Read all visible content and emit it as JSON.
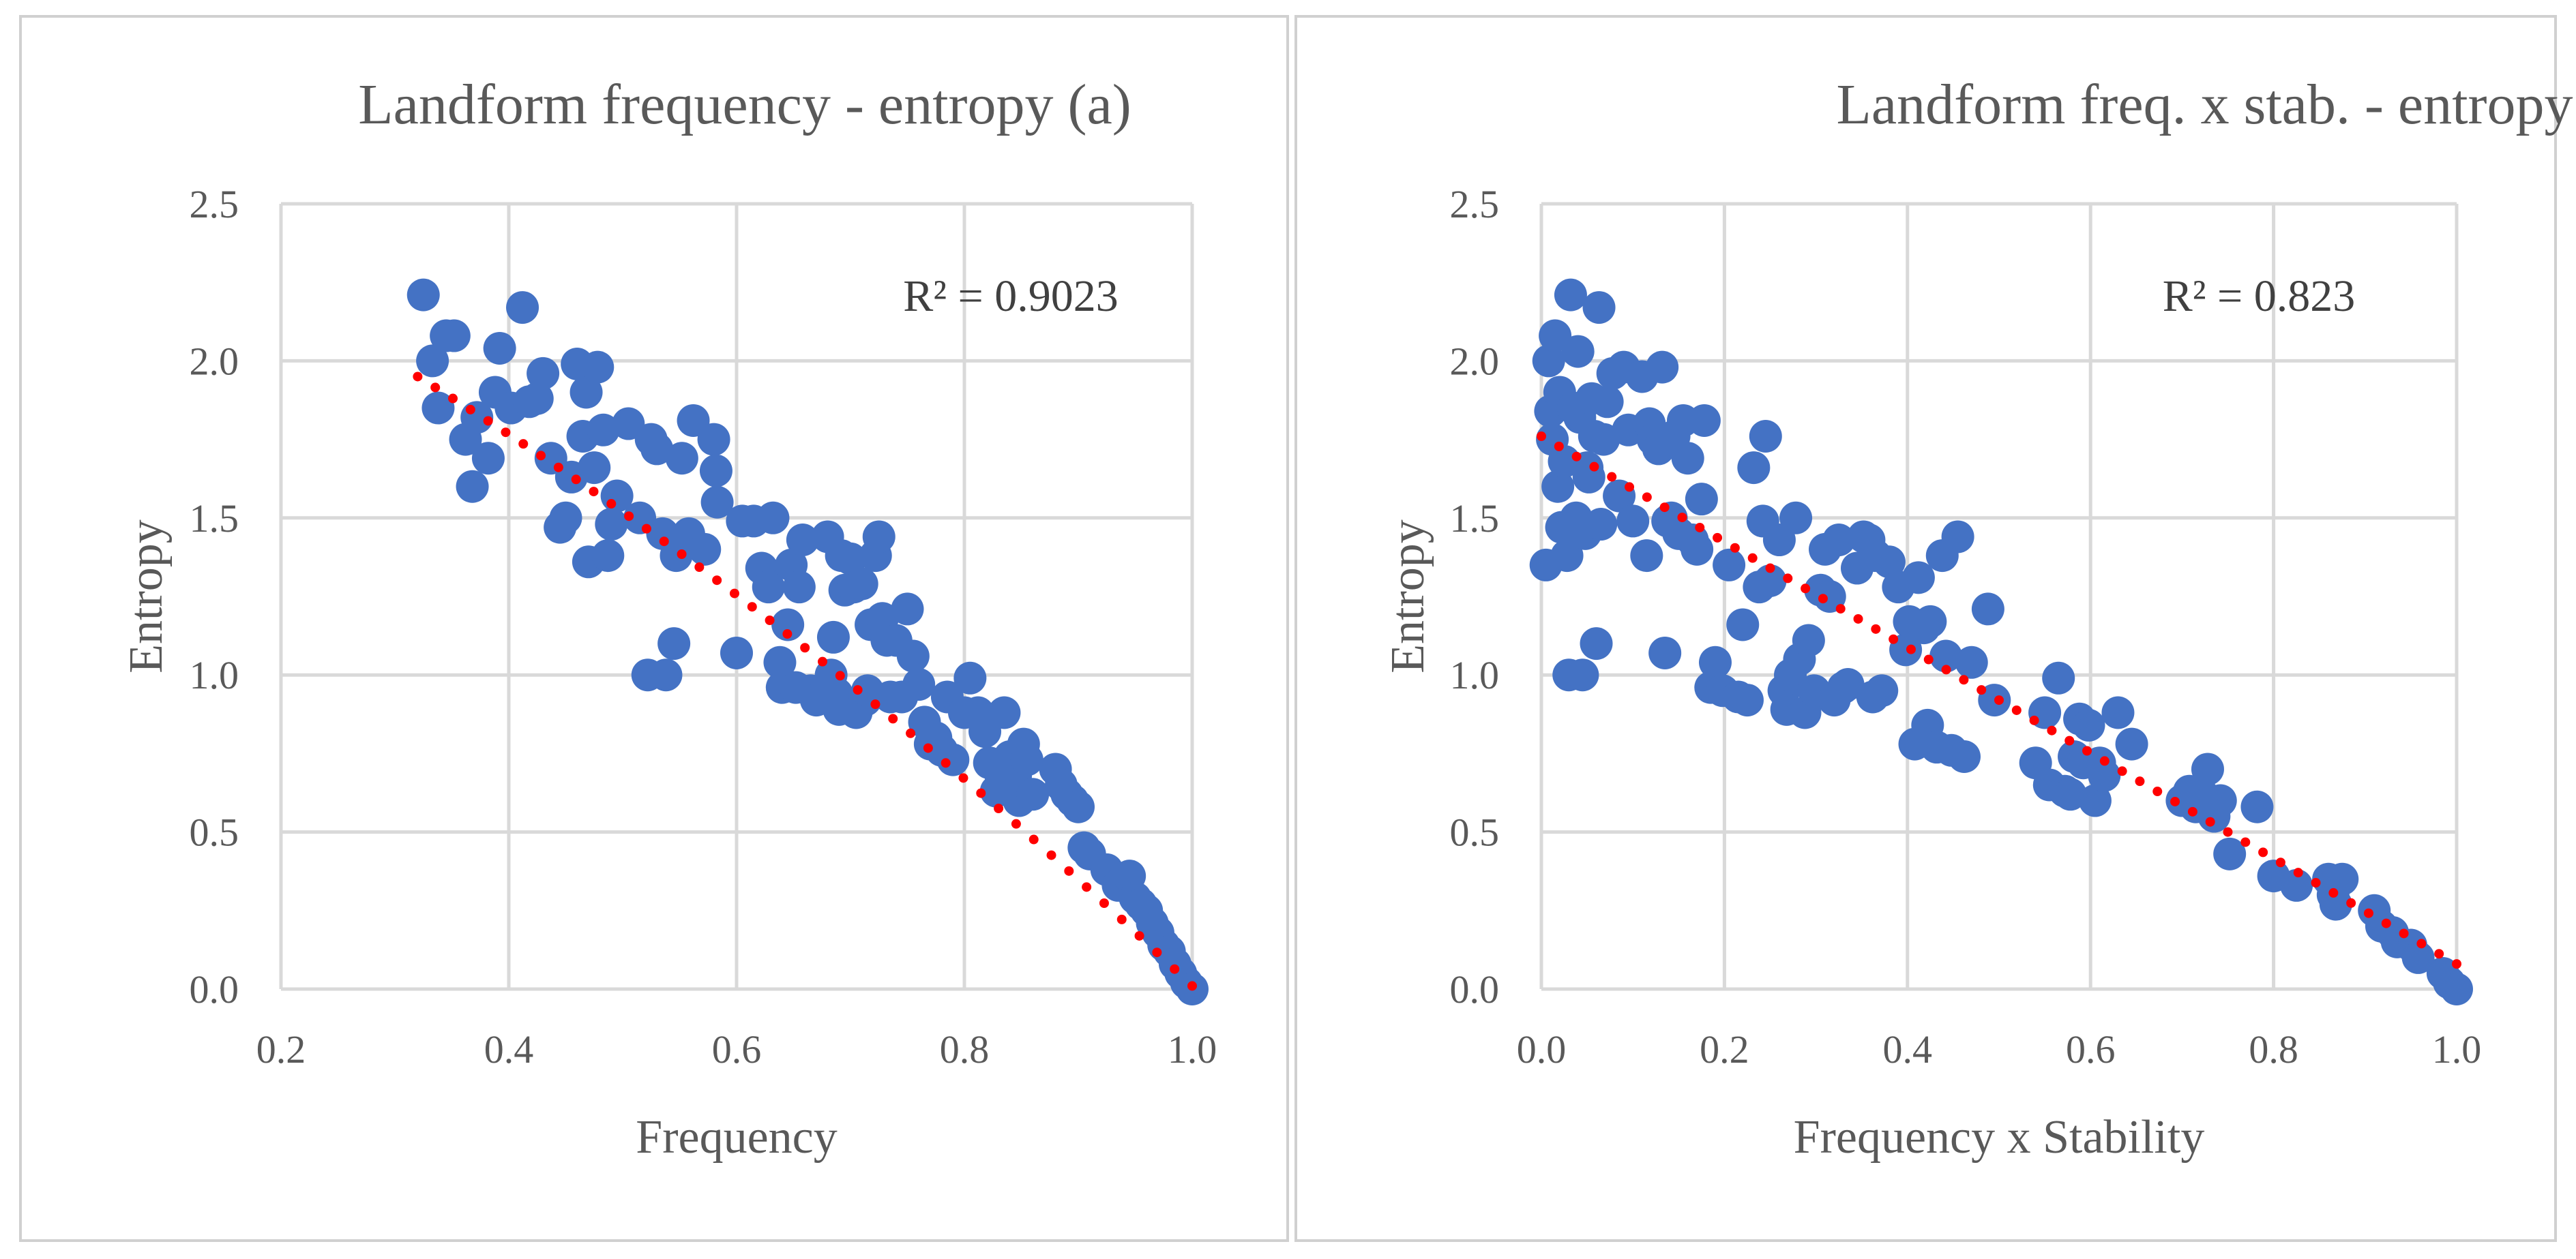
{
  "colors": {
    "points": "#4472c4",
    "trendline": "#ff0000",
    "grid": "#d9d9d9",
    "text": "#595959"
  },
  "chart_data": [
    {
      "type": "scatter",
      "title": "Landform frequency - entropy (a)",
      "xlabel": "Frequency",
      "ylabel": "Entropy",
      "xlim": [
        0.2,
        1.0
      ],
      "ylim": [
        0.0,
        2.5
      ],
      "xticks": [
        "0.2",
        "0.4",
        "0.6",
        "0.8",
        "1.0"
      ],
      "yticks": [
        "0.0",
        "0.5",
        "1.0",
        "1.5",
        "2.0",
        "2.5"
      ],
      "grid": true,
      "r2_label": "R² = 0.9023",
      "trendline": {
        "type": "polynomial",
        "x_range": [
          0.32,
          1.0
        ],
        "y_start": 1.95,
        "y_end": 0.01
      },
      "points": [
        [
          0.325,
          2.21
        ],
        [
          0.333,
          2.0
        ],
        [
          0.338,
          1.85
        ],
        [
          0.345,
          2.08
        ],
        [
          0.352,
          2.08
        ],
        [
          0.362,
          1.75
        ],
        [
          0.368,
          1.6
        ],
        [
          0.372,
          1.82
        ],
        [
          0.382,
          1.69
        ],
        [
          0.388,
          1.9
        ],
        [
          0.392,
          2.04
        ],
        [
          0.402,
          1.85
        ],
        [
          0.412,
          2.17
        ],
        [
          0.418,
          1.87
        ],
        [
          0.425,
          1.88
        ],
        [
          0.43,
          1.96
        ],
        [
          0.437,
          1.69
        ],
        [
          0.445,
          1.47
        ],
        [
          0.45,
          1.5
        ],
        [
          0.455,
          1.63
        ],
        [
          0.46,
          1.99
        ],
        [
          0.465,
          1.76
        ],
        [
          0.468,
          1.9
        ],
        [
          0.47,
          1.36
        ],
        [
          0.475,
          1.66
        ],
        [
          0.478,
          1.98
        ],
        [
          0.483,
          1.78
        ],
        [
          0.487,
          1.38
        ],
        [
          0.49,
          1.48
        ],
        [
          0.495,
          1.57
        ],
        [
          0.505,
          1.8
        ],
        [
          0.515,
          1.5
        ],
        [
          0.522,
          1.0
        ],
        [
          0.525,
          1.75
        ],
        [
          0.53,
          1.72
        ],
        [
          0.535,
          1.45
        ],
        [
          0.538,
          1.0
        ],
        [
          0.545,
          1.1
        ],
        [
          0.547,
          1.38
        ],
        [
          0.552,
          1.69
        ],
        [
          0.558,
          1.45
        ],
        [
          0.562,
          1.81
        ],
        [
          0.572,
          1.4
        ],
        [
          0.58,
          1.75
        ],
        [
          0.582,
          1.65
        ],
        [
          0.583,
          1.55
        ],
        [
          0.6,
          1.07
        ],
        [
          0.605,
          1.49
        ],
        [
          0.615,
          1.49
        ],
        [
          0.622,
          1.34
        ],
        [
          0.628,
          1.28
        ],
        [
          0.632,
          1.5
        ],
        [
          0.638,
          1.04
        ],
        [
          0.64,
          0.96
        ],
        [
          0.645,
          1.16
        ],
        [
          0.648,
          1.35
        ],
        [
          0.652,
          0.96
        ],
        [
          0.655,
          1.28
        ],
        [
          0.658,
          1.43
        ],
        [
          0.665,
          0.95
        ],
        [
          0.67,
          0.92
        ],
        [
          0.68,
          1.44
        ],
        [
          0.683,
          1.0
        ],
        [
          0.685,
          1.12
        ],
        [
          0.688,
          0.94
        ],
        [
          0.69,
          0.89
        ],
        [
          0.692,
          1.38
        ],
        [
          0.695,
          1.27
        ],
        [
          0.7,
          1.37
        ],
        [
          0.703,
          1.28
        ],
        [
          0.705,
          0.88
        ],
        [
          0.71,
          1.29
        ],
        [
          0.713,
          0.92
        ],
        [
          0.715,
          0.95
        ],
        [
          0.718,
          1.16
        ],
        [
          0.722,
          1.38
        ],
        [
          0.725,
          1.44
        ],
        [
          0.728,
          1.18
        ],
        [
          0.732,
          1.11
        ],
        [
          0.735,
          0.93
        ],
        [
          0.74,
          1.11
        ],
        [
          0.745,
          0.93
        ],
        [
          0.75,
          1.21
        ],
        [
          0.755,
          1.06
        ],
        [
          0.76,
          0.97
        ],
        [
          0.765,
          0.85
        ],
        [
          0.77,
          0.78
        ],
        [
          0.775,
          0.8
        ],
        [
          0.78,
          0.76
        ],
        [
          0.785,
          0.93
        ],
        [
          0.79,
          0.73
        ],
        [
          0.8,
          0.88
        ],
        [
          0.805,
          0.99
        ],
        [
          0.812,
          0.88
        ],
        [
          0.818,
          0.82
        ],
        [
          0.822,
          0.72
        ],
        [
          0.828,
          0.63
        ],
        [
          0.832,
          0.68
        ],
        [
          0.835,
          0.88
        ],
        [
          0.84,
          0.74
        ],
        [
          0.845,
          0.68
        ],
        [
          0.848,
          0.6
        ],
        [
          0.852,
          0.78
        ],
        [
          0.855,
          0.73
        ],
        [
          0.86,
          0.62
        ],
        [
          0.88,
          0.7
        ],
        [
          0.885,
          0.65
        ],
        [
          0.89,
          0.62
        ],
        [
          0.895,
          0.6
        ],
        [
          0.9,
          0.58
        ],
        [
          0.905,
          0.45
        ],
        [
          0.91,
          0.43
        ],
        [
          0.925,
          0.38
        ],
        [
          0.935,
          0.33
        ],
        [
          0.945,
          0.36
        ],
        [
          0.95,
          0.29
        ],
        [
          0.955,
          0.27
        ],
        [
          0.96,
          0.25
        ],
        [
          0.965,
          0.21
        ],
        [
          0.97,
          0.18
        ],
        [
          0.975,
          0.14
        ],
        [
          0.98,
          0.12
        ],
        [
          0.985,
          0.08
        ],
        [
          0.99,
          0.05
        ],
        [
          0.995,
          0.02
        ],
        [
          1.0,
          0.0
        ]
      ]
    },
    {
      "type": "scatter",
      "title": "Landform freq. x stab. - entropy (b)",
      "xlabel": "Frequency x Stability",
      "ylabel": "Entropy",
      "xlim": [
        0.0,
        1.0
      ],
      "ylim": [
        0.0,
        2.5
      ],
      "xticks": [
        "0.0",
        "0.2",
        "0.4",
        "0.6",
        "0.8",
        "1.0"
      ],
      "yticks": [
        "0.0",
        "0.5",
        "1.0",
        "1.5",
        "2.0",
        "2.5"
      ],
      "grid": true,
      "r2_label": "R² = 0.823",
      "trendline": {
        "type": "linear",
        "x_range": [
          0.0,
          1.0
        ],
        "y_start": 1.76,
        "y_end": 0.08
      },
      "points": [
        [
          0.005,
          1.35
        ],
        [
          0.008,
          2.0
        ],
        [
          0.01,
          1.84
        ],
        [
          0.012,
          1.75
        ],
        [
          0.015,
          2.08
        ],
        [
          0.018,
          1.6
        ],
        [
          0.02,
          1.9
        ],
        [
          0.022,
          1.47
        ],
        [
          0.025,
          1.68
        ],
        [
          0.028,
          1.38
        ],
        [
          0.03,
          1.0
        ],
        [
          0.032,
          2.21
        ],
        [
          0.035,
          1.85
        ],
        [
          0.038,
          1.5
        ],
        [
          0.04,
          2.03
        ],
        [
          0.042,
          1.82
        ],
        [
          0.045,
          1.0
        ],
        [
          0.048,
          1.45
        ],
        [
          0.05,
          1.66
        ],
        [
          0.052,
          1.63
        ],
        [
          0.055,
          1.88
        ],
        [
          0.058,
          1.76
        ],
        [
          0.06,
          1.1
        ],
        [
          0.063,
          2.17
        ],
        [
          0.065,
          1.48
        ],
        [
          0.068,
          1.75
        ],
        [
          0.072,
          1.87
        ],
        [
          0.078,
          1.96
        ],
        [
          0.085,
          1.57
        ],
        [
          0.09,
          1.98
        ],
        [
          0.095,
          1.78
        ],
        [
          0.1,
          1.49
        ],
        [
          0.11,
          1.95
        ],
        [
          0.115,
          1.38
        ],
        [
          0.118,
          1.8
        ],
        [
          0.122,
          1.75
        ],
        [
          0.128,
          1.72
        ],
        [
          0.132,
          1.98
        ],
        [
          0.135,
          1.07
        ],
        [
          0.138,
          1.49
        ],
        [
          0.142,
          1.5
        ],
        [
          0.145,
          1.76
        ],
        [
          0.15,
          1.45
        ],
        [
          0.155,
          1.81
        ],
        [
          0.16,
          1.69
        ],
        [
          0.165,
          1.43
        ],
        [
          0.17,
          1.4
        ],
        [
          0.175,
          1.56
        ],
        [
          0.178,
          1.81
        ],
        [
          0.185,
          0.96
        ],
        [
          0.19,
          1.04
        ],
        [
          0.198,
          0.95
        ],
        [
          0.205,
          1.35
        ],
        [
          0.215,
          0.93
        ],
        [
          0.22,
          1.16
        ],
        [
          0.225,
          0.92
        ],
        [
          0.232,
          1.66
        ],
        [
          0.238,
          1.28
        ],
        [
          0.242,
          1.49
        ],
        [
          0.245,
          1.76
        ],
        [
          0.25,
          1.3
        ],
        [
          0.26,
          1.43
        ],
        [
          0.265,
          0.95
        ],
        [
          0.268,
          0.89
        ],
        [
          0.272,
          1.0
        ],
        [
          0.278,
          1.5
        ],
        [
          0.282,
          1.05
        ],
        [
          0.288,
          0.88
        ],
        [
          0.292,
          1.11
        ],
        [
          0.298,
          0.95
        ],
        [
          0.305,
          1.27
        ],
        [
          0.31,
          1.4
        ],
        [
          0.315,
          1.25
        ],
        [
          0.32,
          0.92
        ],
        [
          0.325,
          1.43
        ],
        [
          0.33,
          0.96
        ],
        [
          0.335,
          0.97
        ],
        [
          0.345,
          1.34
        ],
        [
          0.352,
          1.44
        ],
        [
          0.358,
          1.43
        ],
        [
          0.362,
          0.93
        ],
        [
          0.365,
          1.38
        ],
        [
          0.372,
          0.95
        ],
        [
          0.38,
          1.36
        ],
        [
          0.39,
          1.28
        ],
        [
          0.398,
          1.08
        ],
        [
          0.402,
          1.17
        ],
        [
          0.408,
          0.78
        ],
        [
          0.412,
          1.31
        ],
        [
          0.418,
          1.15
        ],
        [
          0.422,
          0.84
        ],
        [
          0.425,
          1.17
        ],
        [
          0.432,
          0.77
        ],
        [
          0.438,
          1.38
        ],
        [
          0.442,
          1.06
        ],
        [
          0.448,
          0.76
        ],
        [
          0.455,
          1.44
        ],
        [
          0.462,
          0.74
        ],
        [
          0.47,
          1.04
        ],
        [
          0.488,
          1.21
        ],
        [
          0.495,
          0.92
        ],
        [
          0.54,
          0.72
        ],
        [
          0.55,
          0.88
        ],
        [
          0.555,
          0.65
        ],
        [
          0.565,
          0.99
        ],
        [
          0.572,
          0.63
        ],
        [
          0.578,
          0.62
        ],
        [
          0.582,
          0.74
        ],
        [
          0.588,
          0.86
        ],
        [
          0.592,
          0.72
        ],
        [
          0.598,
          0.84
        ],
        [
          0.605,
          0.6
        ],
        [
          0.61,
          0.72
        ],
        [
          0.615,
          0.68
        ],
        [
          0.63,
          0.88
        ],
        [
          0.645,
          0.78
        ],
        [
          0.7,
          0.6
        ],
        [
          0.708,
          0.63
        ],
        [
          0.715,
          0.58
        ],
        [
          0.722,
          0.62
        ],
        [
          0.728,
          0.7
        ],
        [
          0.735,
          0.55
        ],
        [
          0.742,
          0.6
        ],
        [
          0.752,
          0.43
        ],
        [
          0.782,
          0.58
        ],
        [
          0.8,
          0.36
        ],
        [
          0.825,
          0.33
        ],
        [
          0.86,
          0.35
        ],
        [
          0.865,
          0.3
        ],
        [
          0.868,
          0.27
        ],
        [
          0.875,
          0.35
        ],
        [
          0.91,
          0.25
        ],
        [
          0.918,
          0.2
        ],
        [
          0.93,
          0.18
        ],
        [
          0.935,
          0.15
        ],
        [
          0.95,
          0.14
        ],
        [
          0.958,
          0.1
        ],
        [
          0.985,
          0.05
        ],
        [
          0.992,
          0.02
        ],
        [
          1.0,
          0.0
        ]
      ]
    }
  ]
}
